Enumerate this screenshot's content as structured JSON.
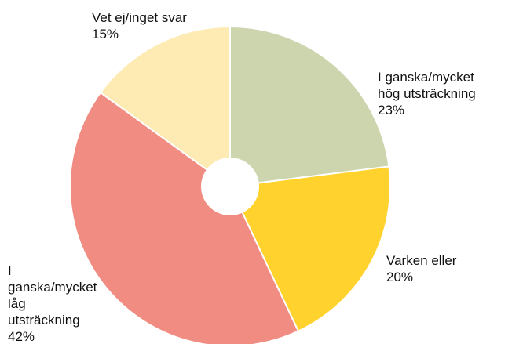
{
  "chart_data": {
    "type": "pie",
    "categories": [
      "I ganska/mycket hög utsträckning",
      "Varken eller",
      "I ganska/mycket låg utsträckning",
      "Vet ej/inget svar"
    ],
    "values": [
      23,
      20,
      42,
      15
    ],
    "value_labels": [
      "23%",
      "20%",
      "42%",
      "15%"
    ],
    "colors": [
      "#cdd5ae",
      "#ffd22e",
      "#f08c82",
      "#fdebb3"
    ]
  }
}
